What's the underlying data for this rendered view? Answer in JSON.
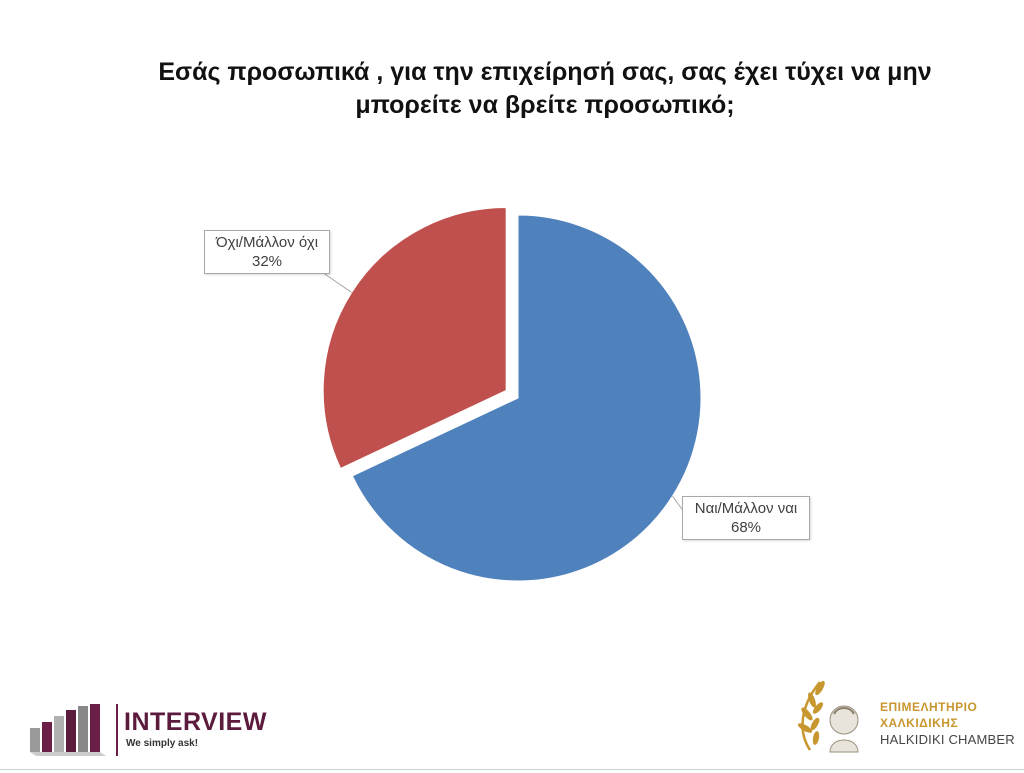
{
  "chart_data": {
    "type": "pie",
    "title_lines": [
      "Εσάς προσωπικά , για την επιχείρησή σας, σας έχει τύχει να μην",
      "μπορείτε να βρείτε προσωπικό;"
    ],
    "slices": [
      {
        "label": "Ναι/Μάλλον ναι",
        "value": 68,
        "display": "68%",
        "color": "#4f81bd",
        "exploded": false
      },
      {
        "label": "Όχι/Μάλλον όχι",
        "value": 32,
        "display": "32%",
        "color": "#c0504d",
        "exploded": true
      }
    ],
    "start_angle_deg": 0,
    "direction": "clockwise",
    "legend": "none"
  },
  "footer": {
    "left_logo": {
      "name": "INTERVIEW",
      "tagline": "We simply ask!",
      "color": "#5c1a3c"
    },
    "right_logo": {
      "line1": "ΕΠΙΜΕΛΗΤΗΡΙΟ",
      "line2": "ΧΑΛΚΙΔΙΚΗΣ",
      "line3": "HALKIDIKI CHAMBER",
      "color": "#c8962e",
      "emblem": "laurel-bust-icon"
    }
  }
}
